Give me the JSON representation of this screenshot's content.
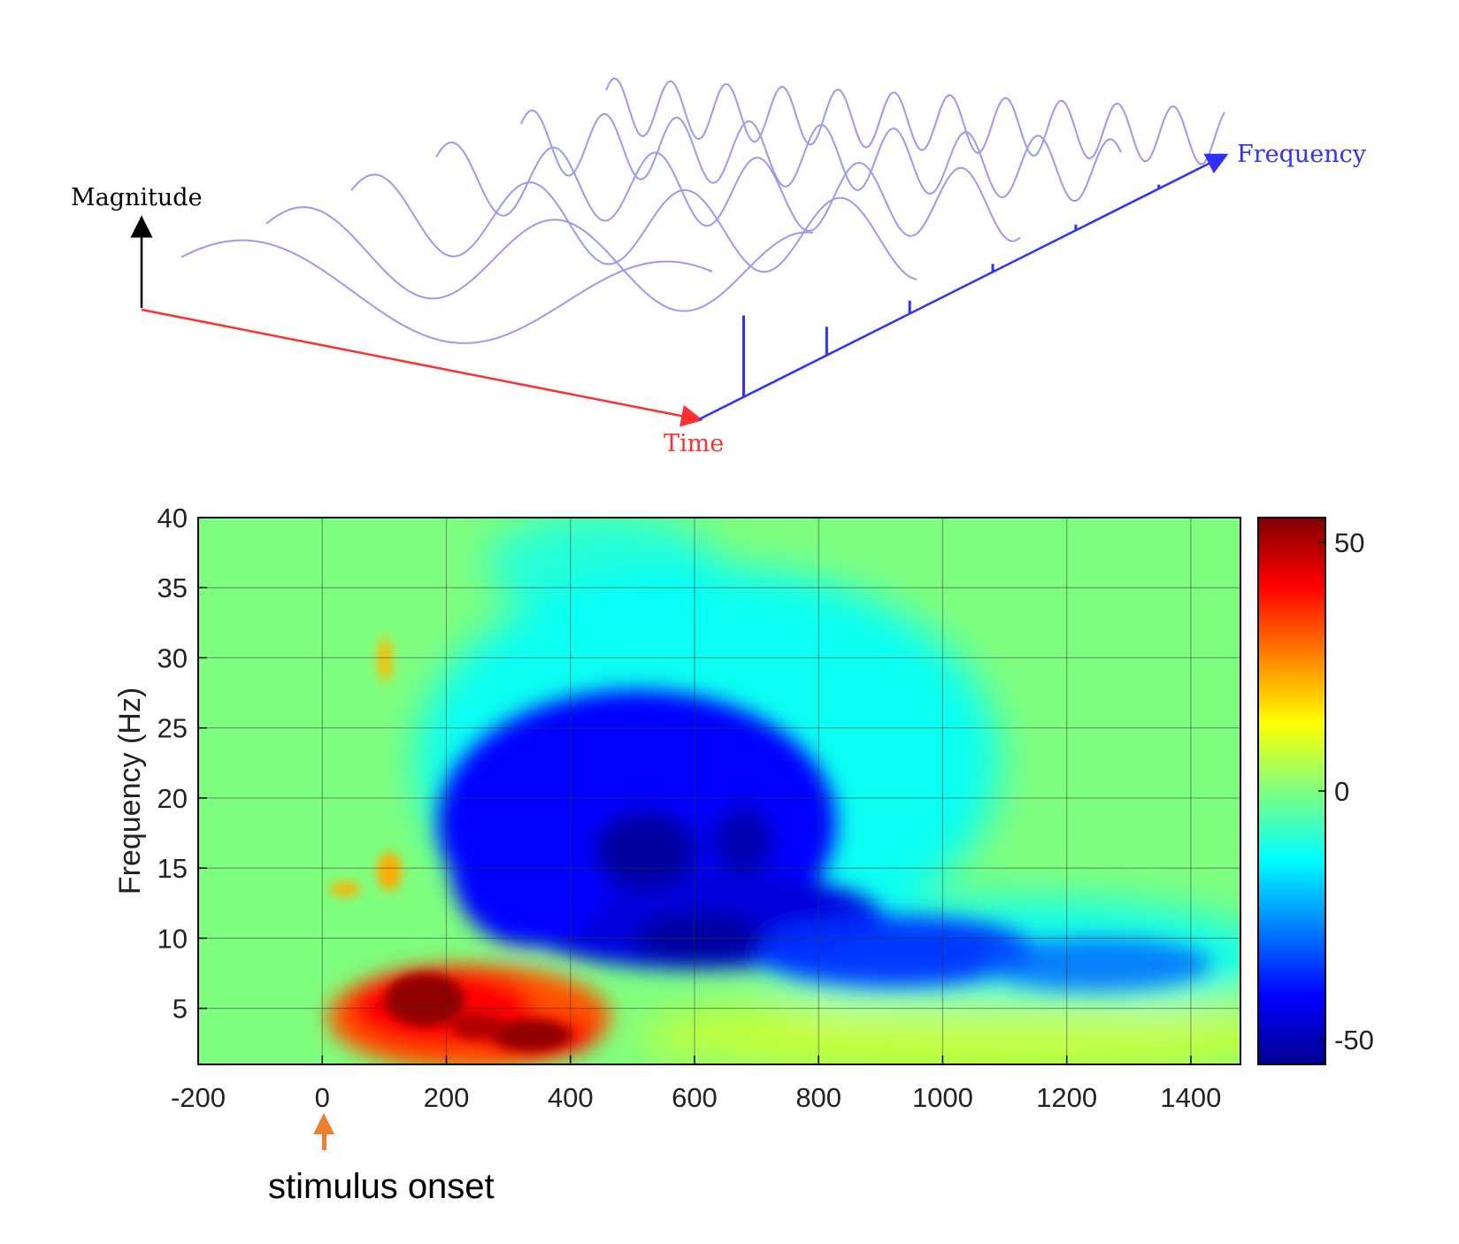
{
  "diagram": {
    "magnitude_label": "Magnitude",
    "time_label": "Time",
    "frequency_label": "Frequency",
    "colors": {
      "magnitude_axis": "#000000",
      "time_axis": "#ff3030",
      "frequency_axis": "#3030ff",
      "waves": "#9a9af0"
    },
    "wave_count": 6,
    "spectrum_line_heights": [
      1.0,
      0.35,
      0.16,
      0.1,
      0.07,
      0.05
    ]
  },
  "chart_data": {
    "type": "heatmap",
    "title": "",
    "xlabel": "",
    "ylabel": "Frequency (Hz)",
    "xlim": [
      -200,
      1480
    ],
    "ylim": [
      1,
      40
    ],
    "x_ticks": [
      "-200",
      "0",
      "200",
      "400",
      "600",
      "800",
      "1000",
      "1200",
      "1400"
    ],
    "x_tick_values": [
      -200,
      0,
      200,
      400,
      600,
      800,
      1000,
      1200,
      1400
    ],
    "y_ticks": [
      "5",
      "10",
      "15",
      "20",
      "25",
      "30",
      "35",
      "40"
    ],
    "y_tick_values": [
      5,
      10,
      15,
      20,
      25,
      30,
      35,
      40
    ],
    "grid": true,
    "colorbar": {
      "colormap": "jet",
      "range": [
        -55,
        55
      ],
      "ticks": [
        "50",
        "0",
        "-50"
      ],
      "tick_values": [
        50,
        0,
        -50
      ]
    },
    "features": [
      {
        "name": "low-frequency power increase",
        "t_range": [
          0,
          500
        ],
        "f_range": [
          1,
          8
        ],
        "value": 55
      },
      {
        "name": "alpha/beta power decrease",
        "t_range": [
          200,
          1480
        ],
        "f_range": [
          6,
          30
        ],
        "value": -55
      }
    ],
    "annotation": {
      "text": "stimulus onset",
      "x": 0,
      "color": "#ed7d31"
    }
  }
}
